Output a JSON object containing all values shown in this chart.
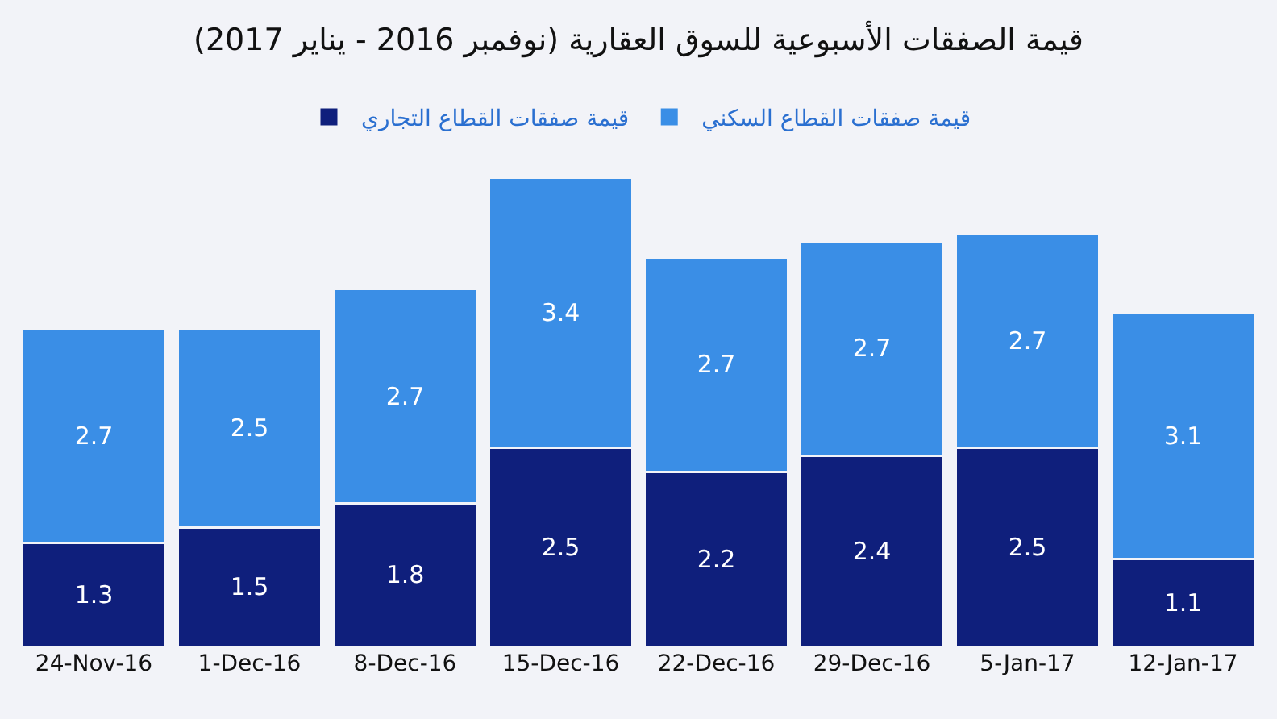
{
  "chart_data": {
    "type": "bar",
    "stacked": true,
    "data_labels": true,
    "legend": "top",
    "tick_labels": "x",
    "title": "قيمة الصفقات الأسبوعية للسوق العقارية (نوفمبر 2016 - يناير 2017)",
    "categories": [
      "24-Nov-16",
      "1-Dec-16",
      "8-Dec-16",
      "15-Dec-16",
      "22-Dec-16",
      "29-Dec-16",
      "5-Jan-17",
      "12-Jan-17"
    ],
    "series": [
      {
        "name": "قيمة صفقات القطاع التجاري",
        "color": "#0f1f7c",
        "values": [
          1.3,
          1.5,
          1.8,
          2.5,
          2.2,
          2.4,
          2.5,
          1.1
        ]
      },
      {
        "name": "قيمة صفقات القطاع السكني",
        "color": "#3a8ee6",
        "values": [
          2.7,
          2.5,
          2.7,
          3.4,
          2.7,
          2.7,
          2.7,
          3.1
        ]
      }
    ]
  }
}
